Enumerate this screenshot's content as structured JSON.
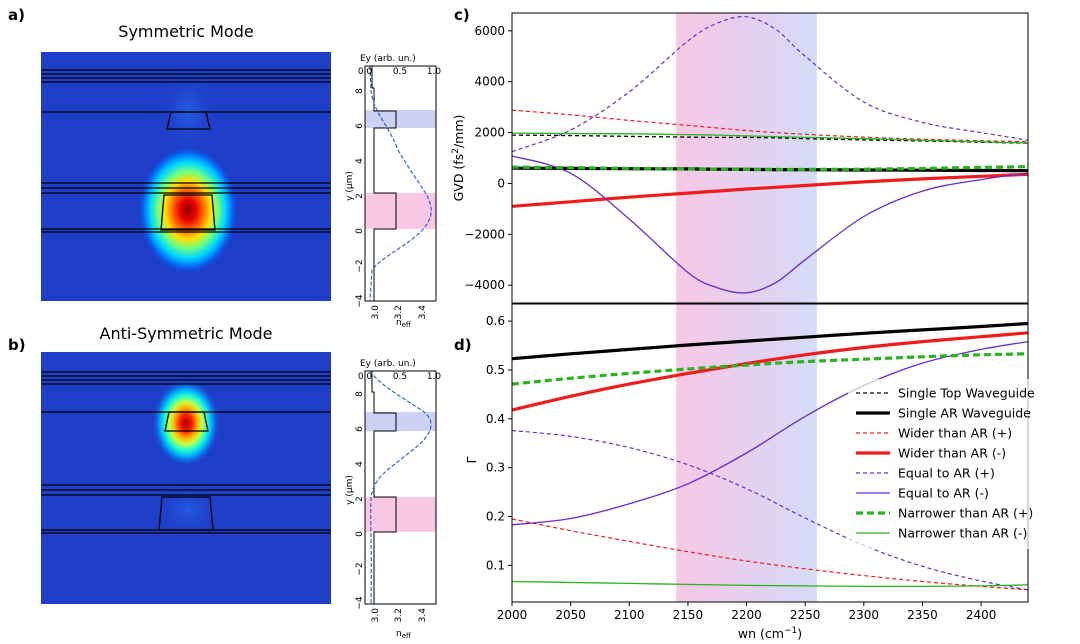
{
  "panel_labels": {
    "a": "a)",
    "b": "b)",
    "c": "c)",
    "d": "d)"
  },
  "mode_titles": {
    "a": "Symmetric Mode",
    "b": "Anti-Symmetric Mode"
  },
  "profile_axes": {
    "top_label": "Ey (arb. un.)",
    "top_ticks": [
      "0.0",
      "0.5",
      "1.0"
    ],
    "y_label": "y (μm)",
    "y_ticks": [
      "8",
      "6",
      "4",
      "2",
      "0",
      "−2",
      "−4"
    ],
    "bottom_label": "n",
    "bottom_label_sub": "eff",
    "bottom_ticks": [
      "3.0",
      "3.2",
      "3.4"
    ]
  },
  "colors": {
    "pink_band": "#f8c8e4",
    "blue_band": "#cdd2f4",
    "red": "#ee1c1c",
    "purple": "#6a2ad0",
    "green": "#2ab21f",
    "black": "#000000"
  },
  "chart_data": [
    {
      "type": "line",
      "id": "c",
      "ylabel": "GVD (fs²/mm)",
      "ylabel_main": "GVD (fs",
      "ylabel_sup": "2",
      "ylabel_end": "/mm)",
      "xlim": [
        2000,
        2440
      ],
      "ylim": [
        -4700,
        6700
      ],
      "yticks": [
        -4000,
        -2000,
        0,
        2000,
        4000,
        6000
      ],
      "yticklabels": [
        "−4000",
        "−2000",
        "0",
        "2000",
        "4000",
        "6000"
      ],
      "shaded_region": [
        2140,
        2260
      ],
      "x": [
        2000,
        2050,
        2100,
        2150,
        2175,
        2200,
        2225,
        2250,
        2300,
        2350,
        2400,
        2440
      ],
      "series": [
        {
          "name": "Single Top Waveguide",
          "values": [
            1900,
            1880,
            1850,
            1820,
            1810,
            1810,
            1790,
            1760,
            1710,
            1670,
            1620,
            1580
          ]
        },
        {
          "name": "Single AR Waveguide",
          "values": [
            600,
            590,
            580,
            570,
            560,
            550,
            545,
            540,
            530,
            520,
            510,
            500
          ]
        },
        {
          "name": "Wider than AR (+)",
          "values": [
            2880,
            2700,
            2480,
            2280,
            2180,
            2080,
            2000,
            1930,
            1820,
            1740,
            1680,
            1640
          ]
        },
        {
          "name": "Wider than AR (-)",
          "values": [
            -900,
            -720,
            -540,
            -380,
            -300,
            -220,
            -150,
            -80,
            60,
            180,
            280,
            360
          ]
        },
        {
          "name": "Equal to AR (+)",
          "values": [
            1250,
            2100,
            3600,
            5600,
            6300,
            6550,
            6050,
            5000,
            3200,
            2400,
            2000,
            1700
          ]
        },
        {
          "name": "Equal to AR (-)",
          "values": [
            1080,
            400,
            -1400,
            -3500,
            -4100,
            -4300,
            -3900,
            -3000,
            -1300,
            -300,
            150,
            400
          ]
        },
        {
          "name": "Narrower than AR (+)",
          "values": [
            640,
            620,
            590,
            570,
            560,
            550,
            550,
            550,
            560,
            590,
            630,
            660
          ]
        },
        {
          "name": "Narrower than AR (-)",
          "values": [
            1980,
            1960,
            1950,
            1920,
            1900,
            1870,
            1840,
            1810,
            1760,
            1700,
            1640,
            1590
          ]
        }
      ]
    },
    {
      "type": "line",
      "id": "d",
      "xlabel": "wn (cm⁻¹)",
      "xlabel_main": "wn (cm",
      "xlabel_sup": "−1",
      "xlabel_end": ")",
      "ylabel": "Γ",
      "xlim": [
        2000,
        2440
      ],
      "ylim": [
        0.025,
        0.635
      ],
      "xticks": [
        2000,
        2050,
        2100,
        2150,
        2200,
        2250,
        2300,
        2350,
        2400
      ],
      "yticks": [
        0.1,
        0.2,
        0.3,
        0.4,
        0.5,
        0.6
      ],
      "yticklabels": [
        "0.1",
        "0.2",
        "0.3",
        "0.4",
        "0.5",
        "0.6"
      ],
      "shaded_region": [
        2140,
        2260
      ],
      "x": [
        2000,
        2050,
        2100,
        2150,
        2200,
        2250,
        2300,
        2350,
        2400,
        2440
      ],
      "series": [
        {
          "name": "Single Top Waveguide",
          "values": [
            0.523,
            0.533,
            0.542,
            0.551,
            0.559,
            0.567,
            0.575,
            0.582,
            0.589,
            0.595
          ]
        },
        {
          "name": "Single AR Waveguide",
          "values": [
            0.523,
            0.533,
            0.542,
            0.551,
            0.559,
            0.567,
            0.575,
            0.582,
            0.589,
            0.595
          ]
        },
        {
          "name": "Wider than AR (+)",
          "values": [
            0.195,
            0.171,
            0.149,
            0.128,
            0.109,
            0.093,
            0.079,
            0.067,
            0.057,
            0.05
          ]
        },
        {
          "name": "Wider than AR (-)",
          "values": [
            0.418,
            0.446,
            0.471,
            0.493,
            0.513,
            0.531,
            0.546,
            0.558,
            0.568,
            0.576
          ]
        },
        {
          "name": "Equal to AR (+)",
          "values": [
            0.376,
            0.364,
            0.341,
            0.306,
            0.257,
            0.197,
            0.141,
            0.098,
            0.068,
            0.05
          ]
        },
        {
          "name": "Equal to AR (-)",
          "values": [
            0.183,
            0.196,
            0.226,
            0.267,
            0.33,
            0.405,
            0.468,
            0.514,
            0.542,
            0.558
          ]
        },
        {
          "name": "Narrower than AR (+)",
          "values": [
            0.471,
            0.483,
            0.493,
            0.502,
            0.51,
            0.517,
            0.522,
            0.527,
            0.531,
            0.533
          ]
        },
        {
          "name": "Narrower than AR (-)",
          "values": [
            0.067,
            0.065,
            0.063,
            0.061,
            0.059,
            0.058,
            0.057,
            0.057,
            0.058,
            0.06
          ]
        }
      ]
    }
  ]
}
